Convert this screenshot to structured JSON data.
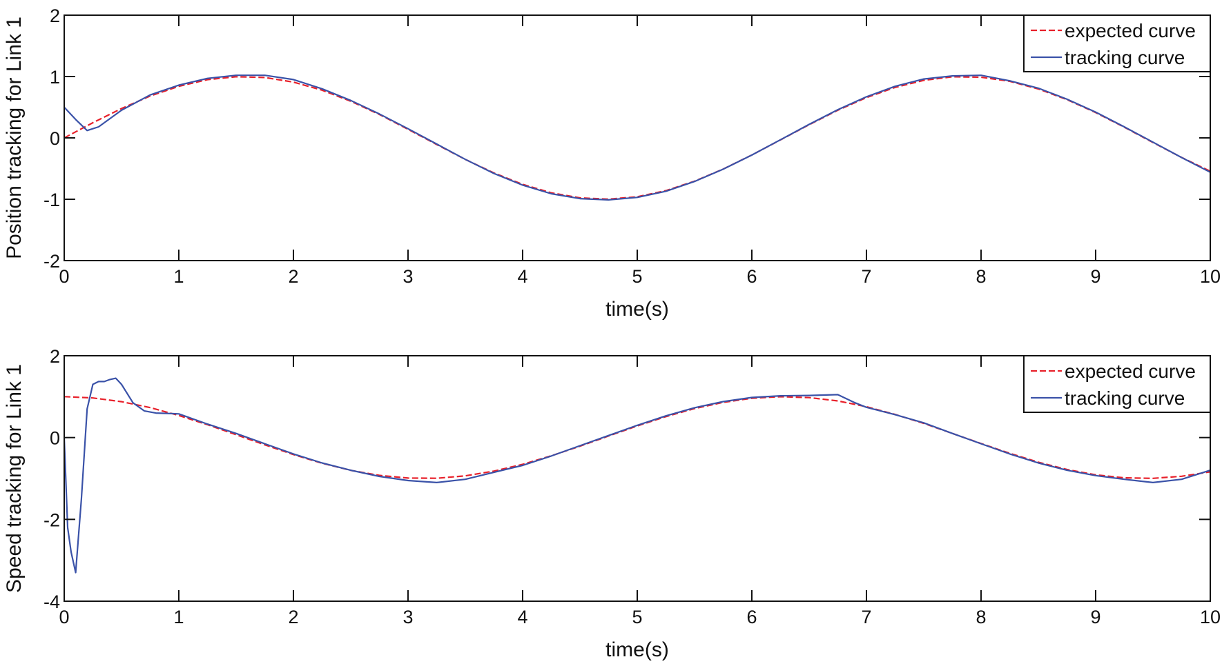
{
  "chart_data": [
    {
      "type": "line",
      "title": "",
      "xlabel": "time(s)",
      "ylabel": "Position tracking for Link 1",
      "xlim": [
        0,
        10
      ],
      "ylim": [
        -2,
        2
      ],
      "xticks": [
        "0",
        "1",
        "2",
        "3",
        "4",
        "5",
        "6",
        "7",
        "8",
        "9",
        "10"
      ],
      "yticks": [
        "-2",
        "-1",
        "0",
        "1",
        "2"
      ],
      "grid": false,
      "legend_position": "top-right",
      "series": [
        {
          "name": "expected curve",
          "color": "#e8202a",
          "style": "dashed",
          "x": [
            0,
            0.25,
            0.5,
            0.75,
            1,
            1.25,
            1.5,
            1.75,
            2,
            2.25,
            2.5,
            2.75,
            3,
            3.25,
            3.5,
            3.75,
            4,
            4.25,
            4.5,
            4.75,
            5,
            5.25,
            5.5,
            5.75,
            6,
            6.25,
            6.5,
            6.75,
            7,
            7.25,
            7.5,
            7.75,
            8,
            8.25,
            8.5,
            8.75,
            9,
            9.25,
            9.5,
            9.75,
            10
          ],
          "y": [
            0,
            0.247,
            0.479,
            0.682,
            0.841,
            0.949,
            0.997,
            0.984,
            0.909,
            0.778,
            0.598,
            0.382,
            0.141,
            -0.108,
            -0.351,
            -0.572,
            -0.757,
            -0.895,
            -0.978,
            -0.999,
            -0.959,
            -0.859,
            -0.706,
            -0.508,
            -0.279,
            -0.033,
            0.215,
            0.45,
            0.657,
            0.823,
            0.938,
            0.995,
            0.989,
            0.923,
            0.798,
            0.624,
            0.412,
            0.174,
            -0.075,
            -0.319,
            -0.544
          ]
        },
        {
          "name": "tracking curve",
          "color": "#3a52a8",
          "style": "solid",
          "x": [
            0,
            0.1,
            0.2,
            0.3,
            0.5,
            0.75,
            1,
            1.25,
            1.5,
            1.75,
            2,
            2.25,
            2.5,
            2.75,
            3,
            3.25,
            3.5,
            3.75,
            4,
            4.25,
            4.5,
            4.75,
            5,
            5.25,
            5.5,
            5.75,
            6,
            6.25,
            6.5,
            6.75,
            7,
            7.25,
            7.5,
            7.75,
            8,
            8.25,
            8.5,
            8.75,
            9,
            9.25,
            9.5,
            9.75,
            10
          ],
          "y": [
            0.5,
            0.3,
            0.12,
            0.18,
            0.45,
            0.7,
            0.86,
            0.97,
            1.02,
            1.02,
            0.95,
            0.8,
            0.61,
            0.39,
            0.15,
            -0.1,
            -0.35,
            -0.58,
            -0.77,
            -0.91,
            -0.99,
            -1.01,
            -0.97,
            -0.87,
            -0.71,
            -0.51,
            -0.28,
            -0.03,
            0.22,
            0.46,
            0.67,
            0.84,
            0.96,
            1.01,
            1.02,
            0.93,
            0.81,
            0.63,
            0.42,
            0.18,
            -0.07,
            -0.32,
            -0.56
          ]
        }
      ]
    },
    {
      "type": "line",
      "title": "",
      "xlabel": "time(s)",
      "ylabel": "Speed tracking for Link 1",
      "xlim": [
        0,
        10
      ],
      "ylim": [
        -4,
        2
      ],
      "xticks": [
        "0",
        "1",
        "2",
        "3",
        "4",
        "5",
        "6",
        "7",
        "8",
        "9",
        "10"
      ],
      "yticks": [
        "-4",
        "-2",
        "0",
        "2"
      ],
      "grid": false,
      "legend_position": "top-right",
      "series": [
        {
          "name": "expected curve",
          "color": "#e8202a",
          "style": "dashed",
          "x": [
            0,
            0.25,
            0.5,
            0.75,
            1,
            1.25,
            1.5,
            1.75,
            2,
            2.25,
            2.5,
            2.75,
            3,
            3.25,
            3.5,
            3.75,
            4,
            4.25,
            4.5,
            4.75,
            5,
            5.25,
            5.5,
            5.75,
            6,
            6.25,
            6.5,
            6.75,
            7,
            7.25,
            7.5,
            7.75,
            8,
            8.25,
            8.5,
            8.75,
            9,
            9.25,
            9.5,
            9.75,
            10
          ],
          "y": [
            1,
            0.969,
            0.878,
            0.732,
            0.54,
            0.315,
            0.071,
            -0.178,
            -0.416,
            -0.628,
            -0.801,
            -0.924,
            -0.99,
            -0.995,
            -0.936,
            -0.82,
            -0.654,
            -0.446,
            -0.211,
            0.038,
            0.284,
            0.512,
            0.709,
            0.861,
            0.96,
            0.999,
            0.977,
            0.896,
            0.754,
            0.565,
            0.347,
            0.101,
            -0.146,
            -0.384,
            -0.602,
            -0.781,
            -0.911,
            -0.985,
            -0.997,
            -0.946,
            -0.839
          ]
        },
        {
          "name": "tracking curve",
          "color": "#3a52a8",
          "style": "solid",
          "x": [
            0,
            0.03,
            0.06,
            0.1,
            0.15,
            0.2,
            0.25,
            0.3,
            0.35,
            0.4,
            0.45,
            0.5,
            0.6,
            0.7,
            0.8,
            1,
            1.25,
            1.5,
            1.75,
            2,
            2.25,
            2.5,
            2.75,
            3,
            3.25,
            3.5,
            3.75,
            4,
            4.25,
            4.5,
            4.75,
            5,
            5.25,
            5.5,
            5.75,
            6,
            6.25,
            6.5,
            6.75,
            6.9,
            7,
            7.25,
            7.5,
            7.75,
            8,
            8.25,
            8.5,
            8.75,
            9,
            9.25,
            9.5,
            9.75,
            10
          ],
          "y": [
            0,
            -2.2,
            -2.8,
            -3.3,
            -1.5,
            0.7,
            1.3,
            1.37,
            1.37,
            1.42,
            1.45,
            1.3,
            0.85,
            0.65,
            0.6,
            0.58,
            0.33,
            0.1,
            -0.15,
            -0.4,
            -0.62,
            -0.8,
            -0.95,
            -1.05,
            -1.1,
            -1.02,
            -0.85,
            -0.68,
            -0.45,
            -0.2,
            0.05,
            0.3,
            0.53,
            0.73,
            0.88,
            0.98,
            1.02,
            1.03,
            1.05,
            0.85,
            0.74,
            0.56,
            0.36,
            0.1,
            -0.15,
            -0.4,
            -0.62,
            -0.8,
            -0.93,
            -1.02,
            -1.1,
            -1.02,
            -0.8
          ]
        }
      ]
    }
  ]
}
